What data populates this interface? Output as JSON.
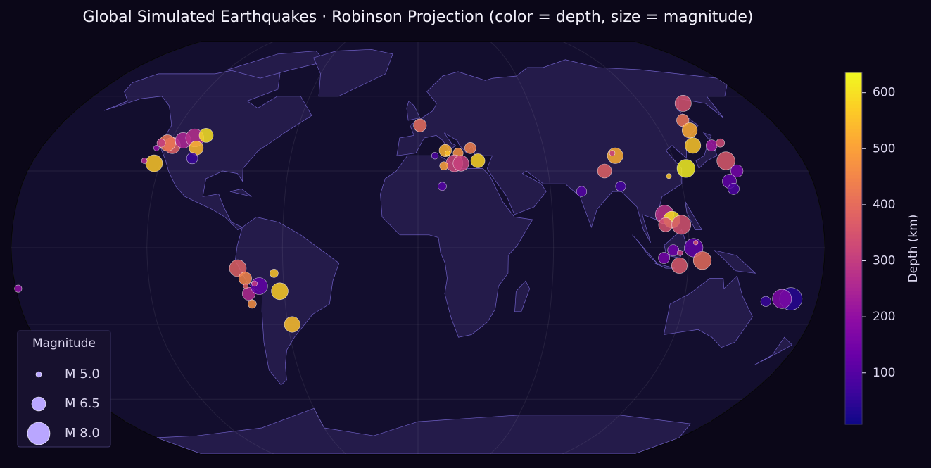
{
  "chart_data": {
    "type": "scatter",
    "projection": "robinson",
    "title": "Global Simulated Earthquakes · Robinson Projection  (color = depth, size = magnitude)",
    "x": [
      -123,
      -118,
      -121,
      -114,
      -109,
      -104,
      -106,
      -106,
      -124,
      -128,
      -125,
      -179,
      -80,
      -77,
      -76,
      -71,
      -62,
      -64,
      -75,
      -58,
      -73,
      -77,
      1,
      8,
      13,
      19,
      25,
      28,
      17,
      20,
      12,
      11,
      14,
      74,
      86,
      93,
      92,
      92,
      143,
      135,
      135,
      132,
      124,
      144,
      147,
      142,
      141,
      146,
      143,
      115,
      110,
      113,
      110,
      117,
      122,
      113,
      109,
      116,
      126,
      116,
      123,
      168,
      164,
      157
    ],
    "y": [
      33,
      40,
      41,
      42,
      43,
      44,
      39,
      35,
      41,
      34,
      39,
      -16,
      -8,
      -12,
      -18,
      -15,
      -17,
      -10,
      -22,
      -30,
      -14,
      -15,
      48,
      36,
      38,
      37,
      39,
      34,
      33,
      33,
      32,
      24,
      37,
      22,
      30,
      36,
      24,
      37,
      57,
      50,
      46,
      40,
      31,
      34,
      30,
      26,
      40,
      41,
      23,
      28,
      13,
      11,
      9,
      9,
      0,
      -1,
      -4,
      -7,
      -5,
      -2,
      2,
      -20,
      -20,
      -21
    ],
    "magnitude": [
      7.0,
      6.9,
      6.9,
      6.8,
      7.2,
      6.5,
      6.5,
      6.0,
      5.5,
      5.0,
      5.0,
      5.3,
      7.0,
      6.3,
      6.3,
      7.0,
      7.0,
      5.5,
      5.5,
      6.8,
      5.0,
      4.9,
      6.3,
      5.2,
      6.2,
      5.8,
      6.0,
      6.5,
      7.0,
      6.8,
      5.5,
      5.5,
      4.9,
      5.8,
      6.5,
      6.8,
      5.8,
      5.0,
      6.9,
      6.2,
      6.7,
      6.8,
      7.2,
      7.2,
      6.2,
      6.5,
      6.0,
      5.5,
      6.0,
      4.9,
      7.3,
      7.0,
      6.5,
      7.4,
      7.3,
      6.0,
      6.0,
      6.8,
      7.2,
      5.0,
      4.8,
      8.0,
      7.4,
      5.8
    ],
    "depth": [
      560,
      380,
      420,
      250,
      270,
      600,
      540,
      60,
      300,
      260,
      200,
      200,
      380,
      450,
      260,
      120,
      570,
      560,
      470,
      550,
      300,
      380,
      400,
      90,
      530,
      470,
      440,
      580,
      320,
      310,
      500,
      100,
      550,
      100,
      380,
      520,
      80,
      300,
      350,
      420,
      520,
      560,
      620,
      360,
      150,
      120,
      220,
      330,
      90,
      560,
      280,
      600,
      350,
      350,
      120,
      140,
      150,
      360,
      400,
      300,
      350,
      40,
      170,
      60
    ],
    "colormap": "plasma",
    "grid": true,
    "colorbar": {
      "label": "Depth (km)",
      "lim": [
        8,
        636
      ],
      "ticks": [
        100,
        200,
        300,
        400,
        500,
        600
      ]
    },
    "legend": {
      "title": "Magnitude",
      "loc": "lower left",
      "sizes": [
        {
          "value": 5.0,
          "label": "M 5.0"
        },
        {
          "value": 6.5,
          "label": "M 6.5"
        },
        {
          "value": 8.0,
          "label": "M 8.0"
        }
      ]
    }
  }
}
